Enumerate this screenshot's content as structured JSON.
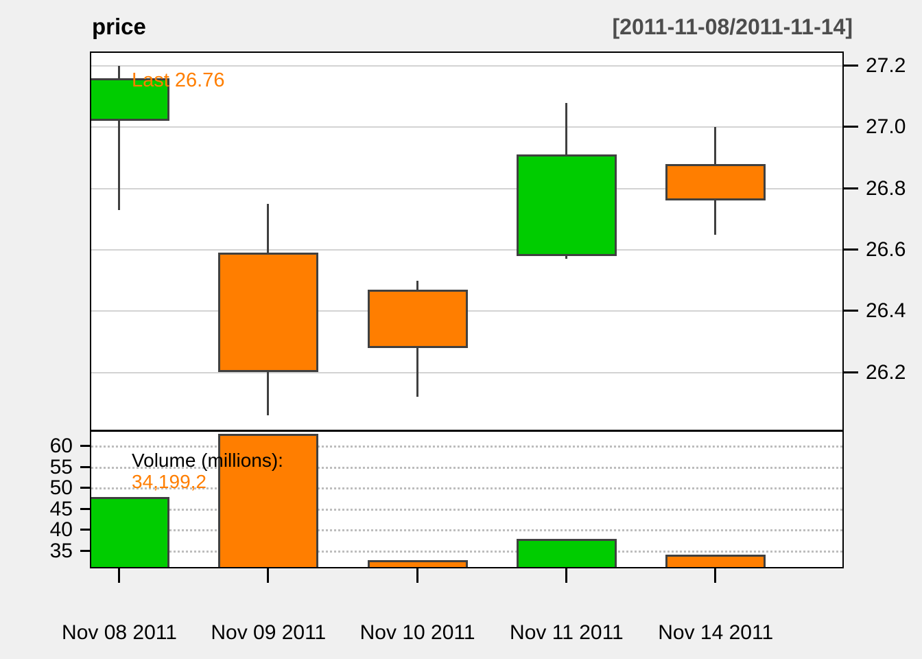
{
  "header": {
    "title": "price",
    "range": "[2011-11-08/2011-11-14]"
  },
  "annotations": {
    "last_label": "Last 26.76",
    "volume_title": "Volume (millions):",
    "volume_value": "34,199,2"
  },
  "chart_data": {
    "type": "candlestick",
    "title": "price",
    "subtitle_range": "[2011-11-08/2011-11-14]",
    "categories": [
      "Nov 08 2011",
      "Nov 09 2011",
      "Nov 10 2011",
      "Nov 11 2011",
      "Nov 14 2011"
    ],
    "candles": [
      {
        "date": "Nov 08 2011",
        "open": 27.02,
        "high": 27.2,
        "low": 26.73,
        "close": 27.16,
        "direction": "up",
        "volume_millions": 47.9
      },
      {
        "date": "Nov 09 2011",
        "open": 26.59,
        "high": 26.75,
        "low": 26.06,
        "close": 26.2,
        "direction": "down",
        "volume_millions": 62.9
      },
      {
        "date": "Nov 10 2011",
        "open": 26.47,
        "high": 26.5,
        "low": 26.12,
        "close": 26.28,
        "direction": "down",
        "volume_millions": 32.9
      },
      {
        "date": "Nov 11 2011",
        "open": 26.58,
        "high": 27.08,
        "low": 26.57,
        "close": 26.91,
        "direction": "up",
        "volume_millions": 37.9
      },
      {
        "date": "Nov 14 2011",
        "open": 26.88,
        "high": 27.0,
        "low": 26.65,
        "close": 26.76,
        "direction": "down",
        "volume_millions": 34.2
      }
    ],
    "price_axis": {
      "side": "right",
      "ticks": [
        27.2,
        27.0,
        26.8,
        26.6,
        26.4,
        26.2
      ],
      "ylim": [
        26.01,
        27.24
      ],
      "grid": "solid"
    },
    "volume_axis": {
      "side": "left",
      "unit": "millions",
      "ticks": [
        60,
        55,
        50,
        45,
        40,
        35
      ],
      "grid": "dotted"
    },
    "legend": "none",
    "colors": {
      "up": "#00CC00",
      "down": "#FF7E00",
      "outline": "#404040",
      "grid": "#D3D3D3",
      "range_text": "#4D4D4D",
      "annotation_orange": "#FF7E00"
    }
  }
}
